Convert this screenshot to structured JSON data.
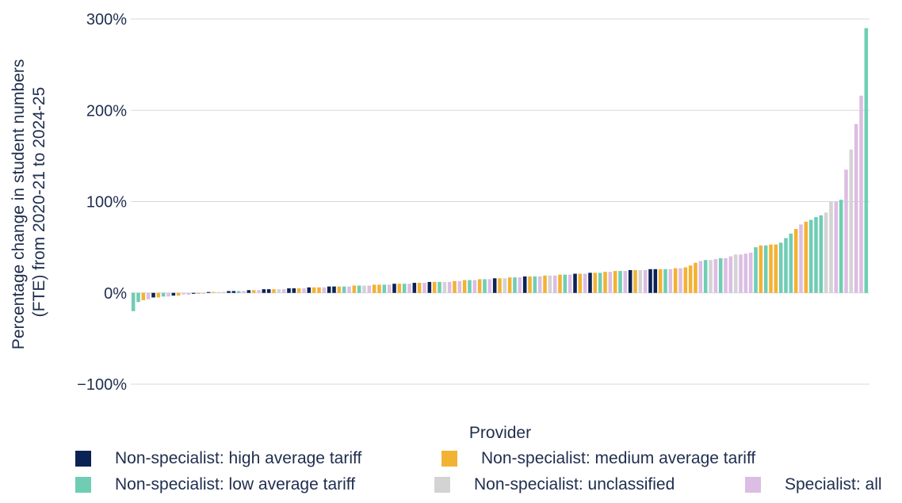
{
  "chart_data": {
    "type": "bar",
    "title": "",
    "xlabel": "Provider",
    "ylabel_lines": [
      "Percentage change in student numbers",
      "(FTE) from 2020-21 to 2024-25"
    ],
    "ylim": [
      -100,
      300
    ],
    "yticks": [
      -100,
      0,
      100,
      200,
      300
    ],
    "ytick_labels": [
      "−100%",
      "0%",
      "100%",
      "200%",
      "300%"
    ],
    "grid": "horizontal",
    "legend_placement": "bottom",
    "categories_note": "",
    "series": [
      {
        "name": "Non-specialist: high average tariff",
        "color": "#0b2255",
        "values": [
          -5,
          -3,
          -1,
          1,
          2,
          2,
          3,
          4,
          4,
          5,
          5,
          6,
          7,
          7,
          10,
          11,
          12,
          16,
          18,
          21,
          22,
          25,
          26,
          26
        ]
      },
      {
        "name": "Non-specialist: medium average tariff",
        "color": "#f2b233",
        "values": [
          -8,
          -5,
          -3,
          -1,
          1,
          3,
          4,
          5,
          6,
          6,
          7,
          8,
          9,
          9,
          10,
          11,
          12,
          13,
          14,
          15,
          16,
          17,
          18,
          19,
          20,
          21,
          22,
          23,
          24,
          25,
          26,
          27,
          28,
          30,
          33,
          52,
          53,
          53,
          70,
          78
        ]
      },
      {
        "name": "Non-specialist: low average tariff",
        "color": "#6fcdb4",
        "values": [
          -20,
          -10,
          -4,
          2,
          7,
          8,
          9,
          10,
          12,
          14,
          15,
          17,
          18,
          20,
          22,
          24,
          26,
          36,
          38,
          50,
          52,
          55,
          60,
          65,
          80,
          83,
          85,
          102,
          290
        ]
      },
      {
        "name": "Non-specialist: unclassified",
        "color": "#d3d3d3",
        "values": [
          -2,
          1,
          4,
          8,
          12,
          16,
          19,
          25,
          36,
          42,
          88,
          100,
          157
        ]
      },
      {
        "name": "Specialist: all",
        "color": "#dcbde3",
        "values": [
          -7,
          -4,
          -2,
          -1,
          1,
          2,
          3,
          4,
          5,
          6,
          7,
          8,
          9,
          10,
          11,
          12,
          13,
          14,
          15,
          17,
          18,
          19,
          20,
          21,
          23,
          24,
          25,
          26,
          27,
          35,
          37,
          38,
          40,
          42,
          43,
          44,
          75,
          100,
          135,
          185,
          216
        ]
      }
    ],
    "sorted_order": "ascending"
  },
  "legend": {
    "row1": [
      "Non-specialist: high average tariff",
      "Non-specialist: medium average tariff"
    ],
    "row2": [
      "Non-specialist: low average tariff",
      "Non-specialist: unclassified",
      "Specialist: all"
    ]
  }
}
